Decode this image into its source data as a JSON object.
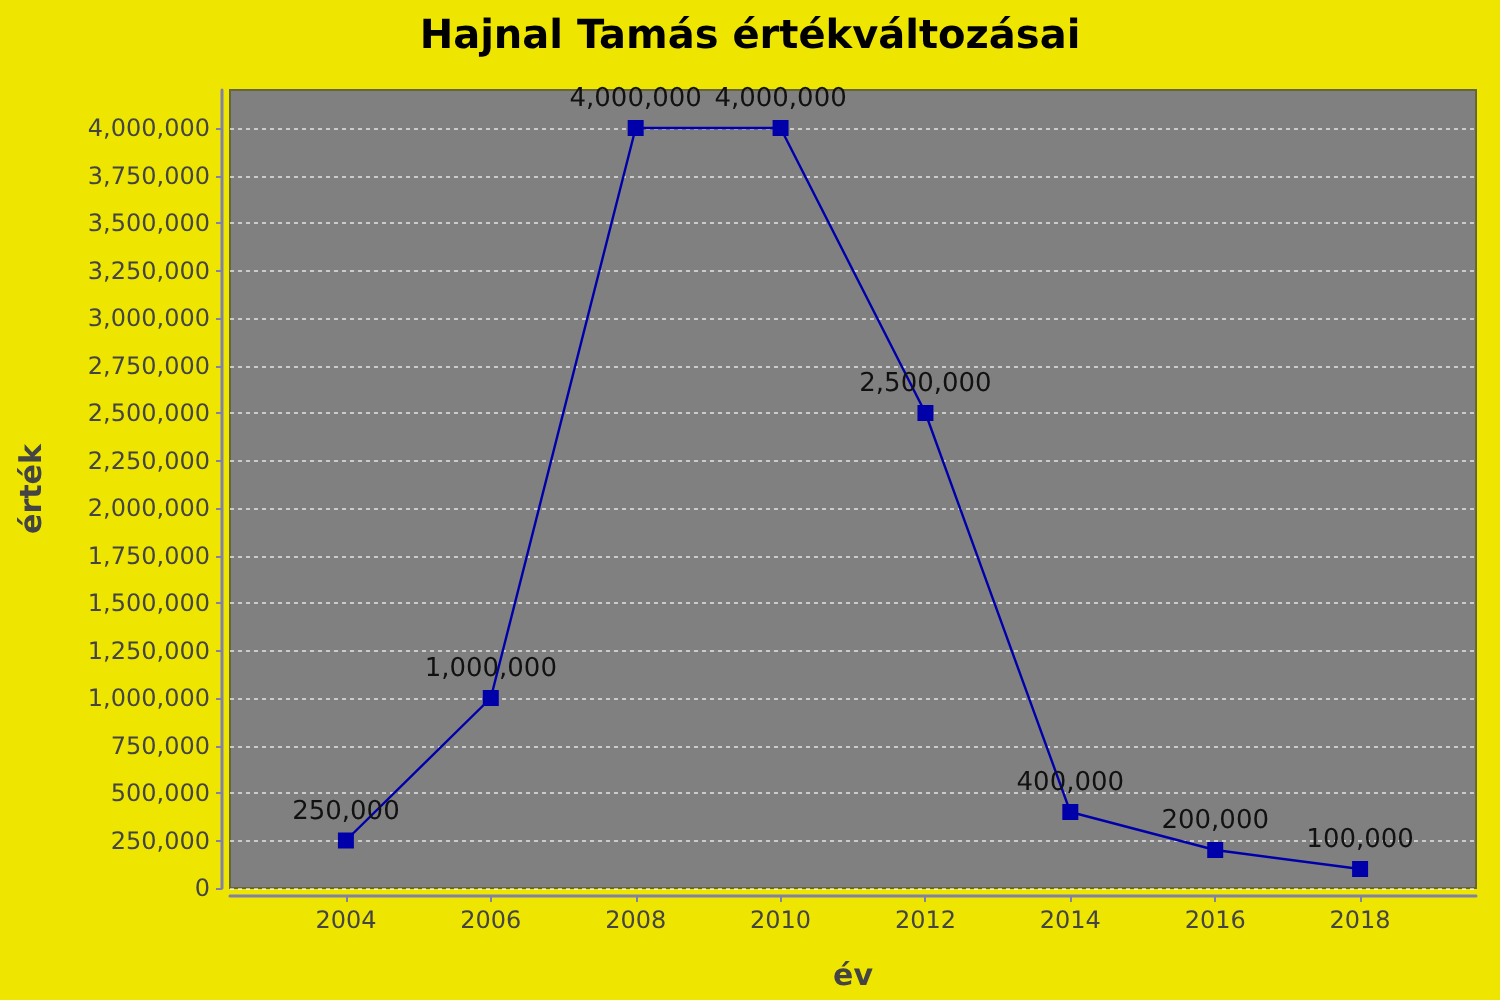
{
  "chart_data": {
    "type": "line",
    "title": "Hajnal Tamás értékváltozásai",
    "xlabel": "év",
    "ylabel": "érték",
    "x": [
      2004,
      2006,
      2008,
      2010,
      2012,
      2014,
      2016,
      2018
    ],
    "series": [
      {
        "color": "#0000aa",
        "values": [
          250000,
          1000000,
          4000000,
          4000000,
          2500000,
          400000,
          200000,
          100000
        ],
        "value_labels": [
          "250,000",
          "1,000,000",
          "4,000,000",
          "4,000,000",
          "2,500,000",
          "400,000",
          "200,000",
          "100,000"
        ]
      }
    ],
    "xlim": [
      2002.4,
      2019.6
    ],
    "xticks": [
      2004,
      2006,
      2008,
      2010,
      2012,
      2014,
      2016,
      2018
    ],
    "ylim": [
      0,
      4200000
    ],
    "yticks": [
      0,
      {
        "value": 250000,
        "label": "250,000"
      },
      {
        "value": 500000,
        "label": "500,000"
      },
      {
        "value": 750000,
        "label": "750,000"
      },
      {
        "value": 1000000,
        "label": "1,000,000"
      },
      {
        "value": 1250000,
        "label": "1,250,000"
      },
      {
        "value": 1500000,
        "label": "1,500,000"
      },
      {
        "value": 1750000,
        "label": "1,750,000"
      },
      {
        "value": 2000000,
        "label": "2,000,000"
      },
      {
        "value": 2250000,
        "label": "2,250,000"
      },
      {
        "value": 2500000,
        "label": "2,500,000"
      },
      {
        "value": 2750000,
        "label": "2,750,000"
      },
      {
        "value": 3000000,
        "label": "3,000,000"
      },
      {
        "value": 3250000,
        "label": "3,250,000"
      },
      {
        "value": 3500000,
        "label": "3,500,000"
      },
      {
        "value": 3750000,
        "label": "3,750,000"
      },
      {
        "value": 4000000,
        "label": "4,000,000"
      }
    ],
    "grid": "y",
    "marker": "square",
    "line_style": "solid"
  }
}
